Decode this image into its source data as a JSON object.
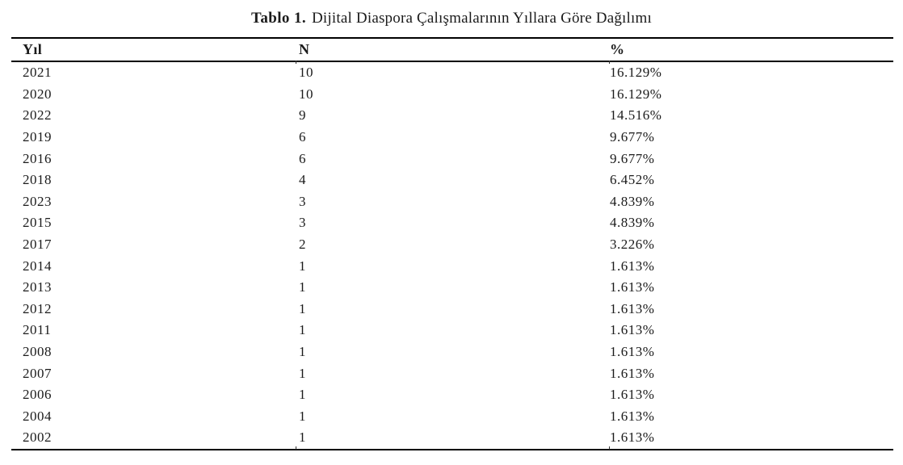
{
  "title": {
    "prefix": "Tablo 1.",
    "text": "Dijital Diaspora Çalışmalarının Yıllara Göre Dağılımı"
  },
  "table": {
    "columns": [
      "Yıl",
      "N",
      "%"
    ],
    "rows": [
      [
        "2021",
        "10",
        "16.129%"
      ],
      [
        "2020",
        "10",
        "16.129%"
      ],
      [
        "2022",
        "9",
        "14.516%"
      ],
      [
        "2019",
        "6",
        "9.677%"
      ],
      [
        "2016",
        "6",
        "9.677%"
      ],
      [
        "2018",
        "4",
        "6.452%"
      ],
      [
        "2023",
        "3",
        "4.839%"
      ],
      [
        "2015",
        "3",
        "4.839%"
      ],
      [
        "2017",
        "2",
        "3.226%"
      ],
      [
        "2014",
        "1",
        "1.613%"
      ],
      [
        "2013",
        "1",
        "1.613%"
      ],
      [
        "2012",
        "1",
        "1.613%"
      ],
      [
        "2011",
        "1",
        "1.613%"
      ],
      [
        "2008",
        "1",
        "1.613%"
      ],
      [
        "2007",
        "1",
        "1.613%"
      ],
      [
        "2006",
        "1",
        "1.613%"
      ],
      [
        "2004",
        "1",
        "1.613%"
      ],
      [
        "2002",
        "1",
        "1.613%"
      ]
    ]
  },
  "colors": {
    "text": "#1b1b1b",
    "rule": "#000000",
    "background": "#ffffff"
  }
}
